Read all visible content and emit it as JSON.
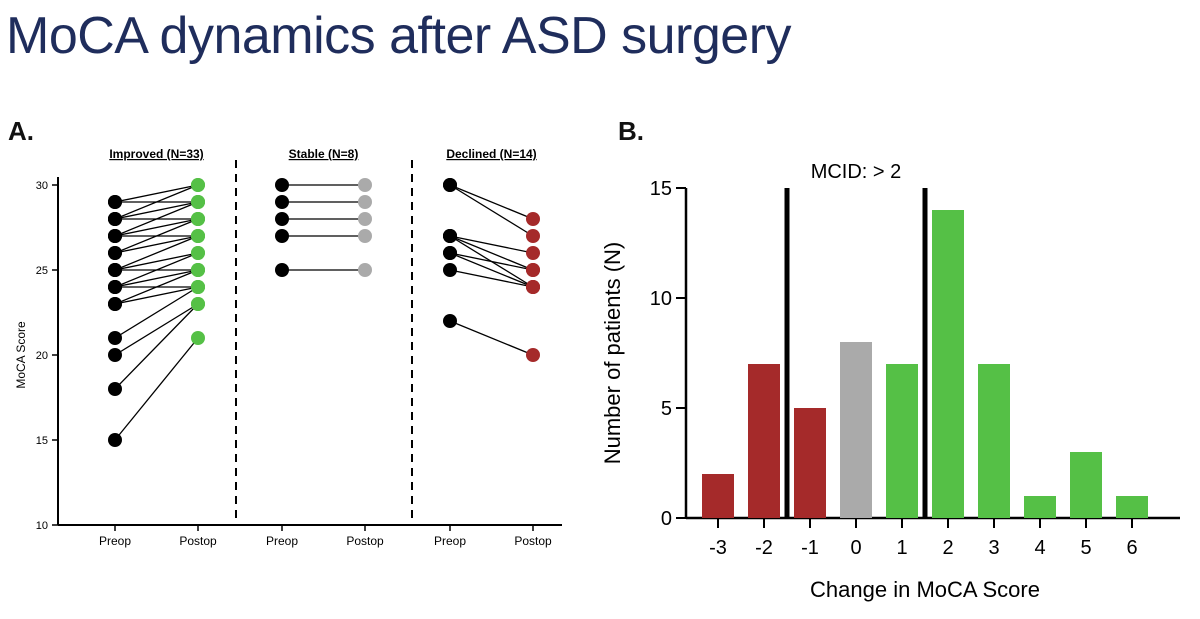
{
  "slide": {
    "title": "MoCA dynamics after ASD surgery"
  },
  "panels": {
    "a_label": "A.",
    "b_label": "B."
  },
  "colors": {
    "title": "#1f2d5c",
    "improved": "#55c046",
    "stable": "#aaaaaa",
    "declined": "#a52a2a",
    "preop": "#000000"
  },
  "chart_data": [
    {
      "type": "line",
      "name": "A",
      "ylabel": "MoCA Score",
      "ylim": [
        10,
        30
      ],
      "yticks": [
        10,
        15,
        20,
        25,
        30
      ],
      "groups": [
        {
          "title": "Improved (N=33)",
          "x_labels": [
            "Preop",
            "Postop"
          ],
          "color": "#55c046",
          "pairs": [
            [
              29,
              30
            ],
            [
              29,
              29
            ],
            [
              28,
              30
            ],
            [
              28,
              29
            ],
            [
              28,
              28
            ],
            [
              27,
              29
            ],
            [
              27,
              28
            ],
            [
              27,
              27
            ],
            [
              26,
              28
            ],
            [
              26,
              27
            ],
            [
              25,
              27
            ],
            [
              25,
              26
            ],
            [
              25,
              25
            ],
            [
              24,
              26
            ],
            [
              24,
              25
            ],
            [
              24,
              24
            ],
            [
              23,
              25
            ],
            [
              23,
              24
            ],
            [
              21,
              24
            ],
            [
              20,
              23
            ],
            [
              18,
              23
            ],
            [
              15,
              21
            ]
          ]
        },
        {
          "title": "Stable (N=8)",
          "x_labels": [
            "Preop",
            "Postop"
          ],
          "color": "#aaaaaa",
          "pairs": [
            [
              30,
              30
            ],
            [
              29,
              29
            ],
            [
              28,
              28
            ],
            [
              27,
              27
            ],
            [
              25,
              25
            ]
          ]
        },
        {
          "title": "Declined (N=14)",
          "x_labels": [
            "Preop",
            "Postop"
          ],
          "color": "#a52a2a",
          "pairs": [
            [
              30,
              28
            ],
            [
              30,
              27
            ],
            [
              27,
              26
            ],
            [
              27,
              25
            ],
            [
              27,
              24
            ],
            [
              26,
              25
            ],
            [
              26,
              24
            ],
            [
              25,
              24
            ],
            [
              22,
              20
            ]
          ]
        }
      ]
    },
    {
      "type": "bar",
      "name": "B",
      "categories": [
        "-3",
        "-2",
        "-1",
        "0",
        "1",
        "2",
        "3",
        "4",
        "5",
        "6"
      ],
      "values": [
        2,
        7,
        5,
        8,
        7,
        14,
        7,
        1,
        3,
        1
      ],
      "bar_colors": [
        "#a52a2a",
        "#a52a2a",
        "#a52a2a",
        "#aaaaaa",
        "#55c046",
        "#55c046",
        "#55c046",
        "#55c046",
        "#55c046",
        "#55c046"
      ],
      "xlabel": "Change in MoCA Score",
      "ylabel": "Number of patients (N)",
      "ylim": [
        0,
        15
      ],
      "yticks": [
        0,
        5,
        10,
        15
      ],
      "annotation": "MCID: > 2",
      "mcid_lines_between": [
        [
          "-2",
          "-1"
        ],
        [
          "1",
          "2"
        ]
      ]
    }
  ]
}
